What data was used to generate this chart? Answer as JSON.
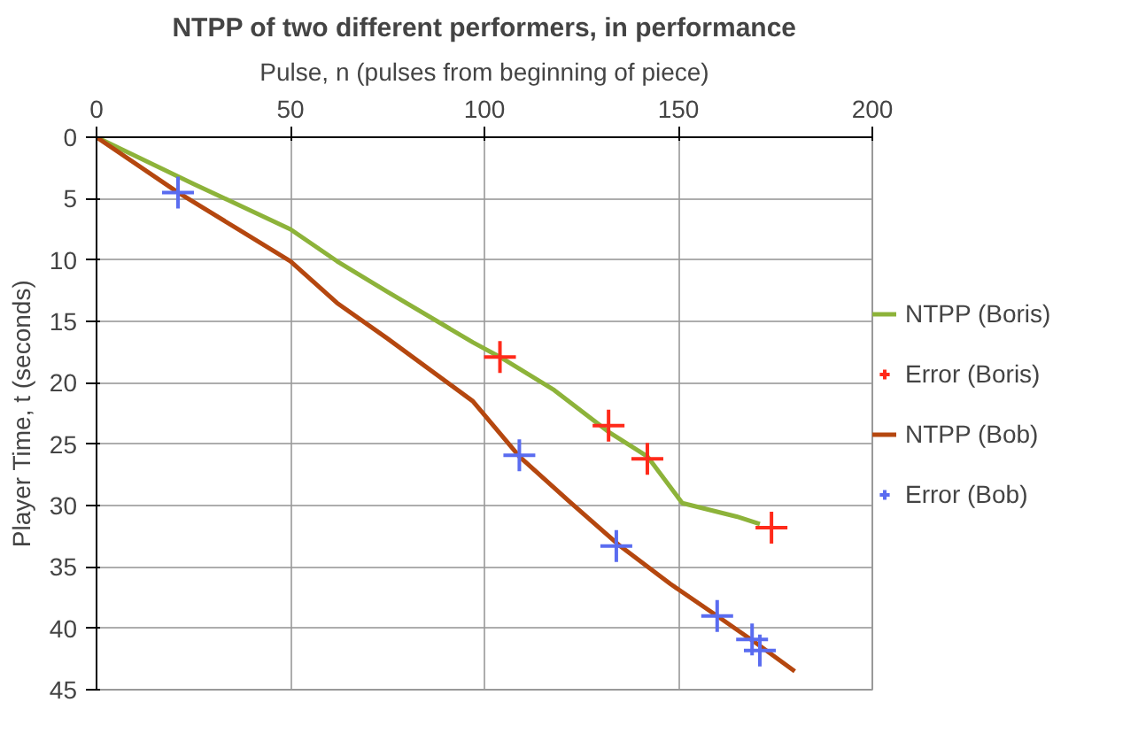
{
  "chart_data": {
    "type": "line",
    "title": "NTPP of two different performers, in performance",
    "xlabel": "Pulse, n (pulses from beginning of piece)",
    "ylabel": "Player Time, t (seconds)",
    "xlim": [
      0,
      200
    ],
    "xticks": [
      0,
      50,
      100,
      150,
      200
    ],
    "ylim": [
      45,
      0
    ],
    "yticks": [
      0,
      5,
      10,
      15,
      20,
      25,
      30,
      35,
      40,
      45
    ],
    "grid": true,
    "legend": "right",
    "series": [
      {
        "name": "NTPP (Boris)",
        "color": "#8db33a",
        "x": [
          0,
          25,
          50,
          62,
          75,
          97,
          104,
          118,
          132,
          142,
          151,
          165,
          171
        ],
        "values": [
          0,
          3.8,
          7.5,
          10.1,
          12.6,
          16.7,
          17.9,
          20.6,
          24,
          26,
          29.8,
          30.9,
          31.5
        ]
      },
      {
        "name": "Error (Boris)",
        "type": "scatter",
        "marker": "cross",
        "color": "#ff2a1a",
        "x": [
          104,
          132,
          142,
          174
        ],
        "values": [
          17.9,
          23.5,
          26.2,
          31.8
        ]
      },
      {
        "name": "NTPP (Bob)",
        "color": "#b5470f",
        "x": [
          0,
          21,
          50,
          62,
          75,
          97,
          109,
          122,
          135,
          148,
          160,
          170,
          180
        ],
        "values": [
          0,
          4.5,
          10.1,
          13.5,
          16.4,
          21.5,
          26,
          29.7,
          33.3,
          36.4,
          39,
          41.2,
          43.5
        ]
      },
      {
        "name": "Error (Bob)",
        "type": "scatter",
        "marker": "cross",
        "color": "#5a6cf0",
        "x": [
          21,
          109,
          134,
          160,
          169,
          171
        ],
        "values": [
          4.5,
          25.9,
          33.3,
          39,
          40.9,
          41.8
        ]
      }
    ]
  }
}
